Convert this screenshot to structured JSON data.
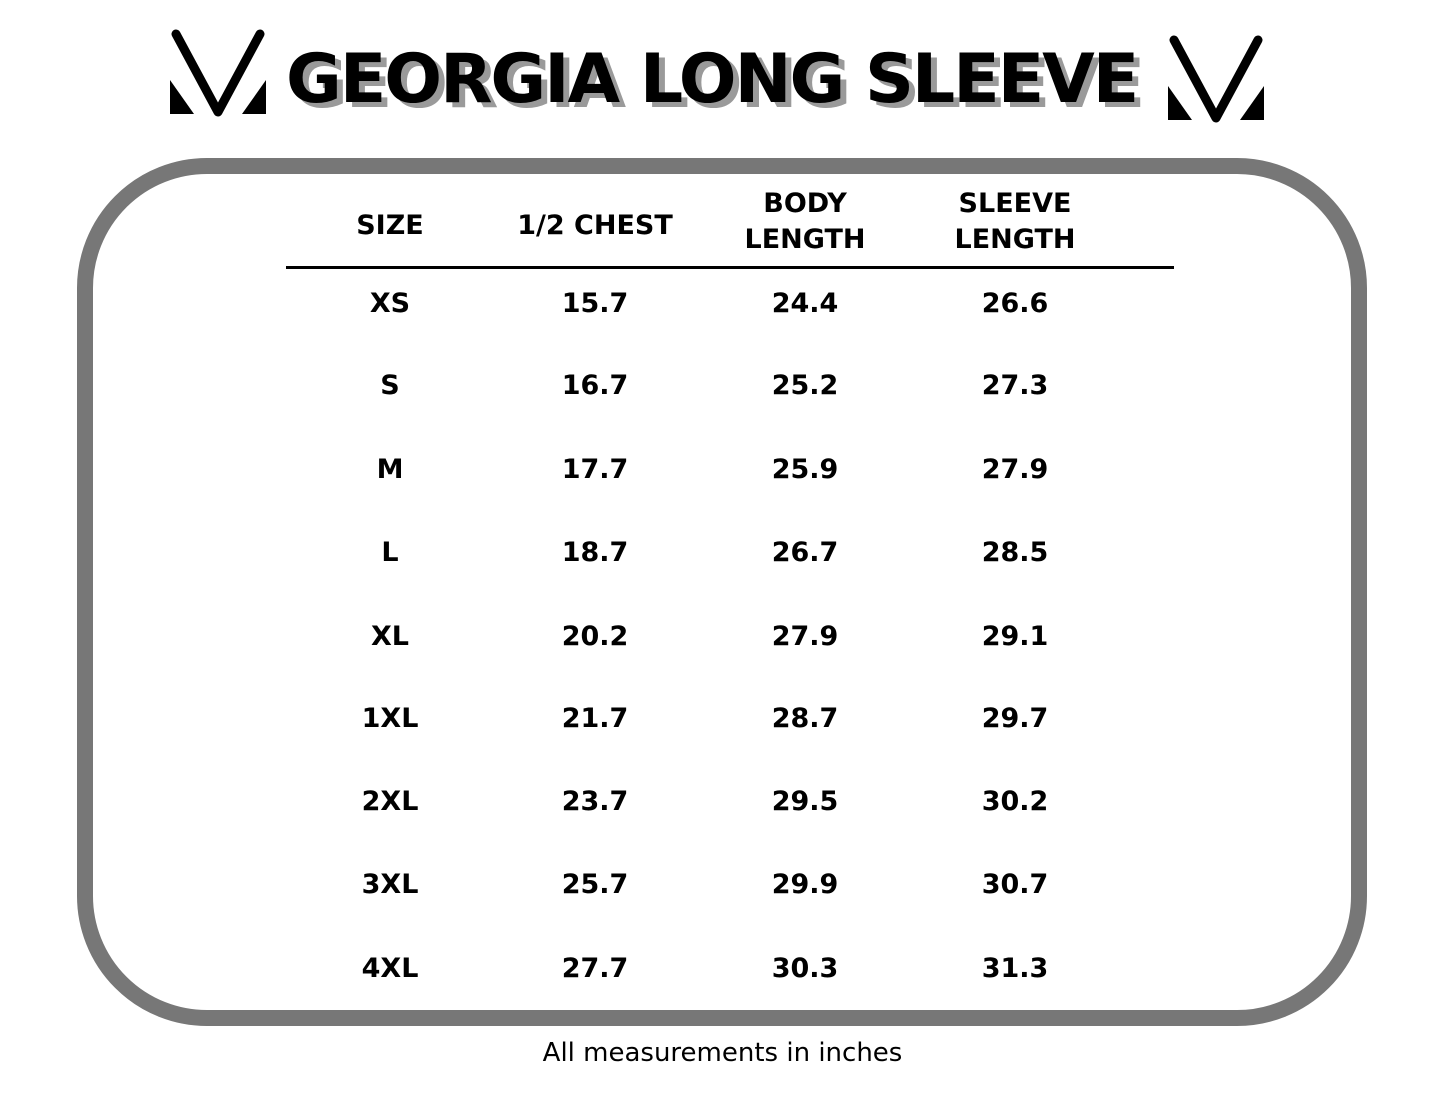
{
  "title": "GEORGIA LONG SLEEVE",
  "logo": "brand-v-logo",
  "table": {
    "headers": [
      [
        "SIZE"
      ],
      [
        "1/2 CHEST"
      ],
      [
        "BODY",
        "LENGTH"
      ],
      [
        "SLEEVE",
        "LENGTH"
      ]
    ],
    "rows": [
      [
        "XS",
        "15.7",
        "24.4",
        "26.6"
      ],
      [
        "S",
        "16.7",
        "25.2",
        "27.3"
      ],
      [
        "M",
        "17.7",
        "25.9",
        "27.9"
      ],
      [
        "L",
        "18.7",
        "26.7",
        "28.5"
      ],
      [
        "XL",
        "20.2",
        "27.9",
        "29.1"
      ],
      [
        "1XL",
        "21.7",
        "28.7",
        "29.7"
      ],
      [
        "2XL",
        "23.7",
        "29.5",
        "30.2"
      ],
      [
        "3XL",
        "25.7",
        "29.9",
        "30.7"
      ],
      [
        "4XL",
        "27.7",
        "30.3",
        "31.3"
      ]
    ]
  },
  "footnote": "All measurements in inches",
  "colors": {
    "frame": "#777777",
    "title_shadow": "#9a9a9a"
  }
}
